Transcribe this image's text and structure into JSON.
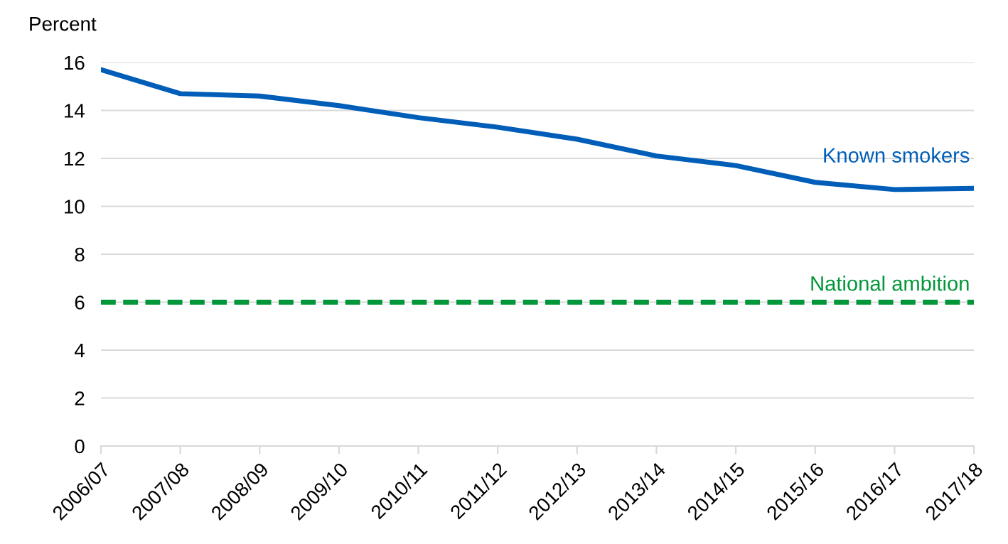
{
  "chart_data": {
    "type": "line",
    "ylabel": "Percent",
    "categories": [
      "2006/07",
      "2007/08",
      "2008/09",
      "2009/10",
      "2010/11",
      "2011/12",
      "2012/13",
      "2013/14",
      "2014/15",
      "2015/16",
      "2016/17",
      "2017/18"
    ],
    "series": [
      {
        "name": "Known smokers",
        "color": "#005eb8",
        "values": [
          15.7,
          14.7,
          14.6,
          14.2,
          13.7,
          13.3,
          12.8,
          12.1,
          11.7,
          11.0,
          10.7,
          10.75
        ]
      }
    ],
    "ref_lines": [
      {
        "axis": "y",
        "value": 6,
        "label": "National ambition",
        "color": "#009639",
        "line_style": "dashed"
      }
    ],
    "ylim": [
      0,
      16
    ],
    "yticks": [
      0,
      2,
      4,
      6,
      8,
      10,
      12,
      14,
      16
    ],
    "grid": "y",
    "legend": false,
    "marker": "none",
    "line_style": "solid"
  }
}
